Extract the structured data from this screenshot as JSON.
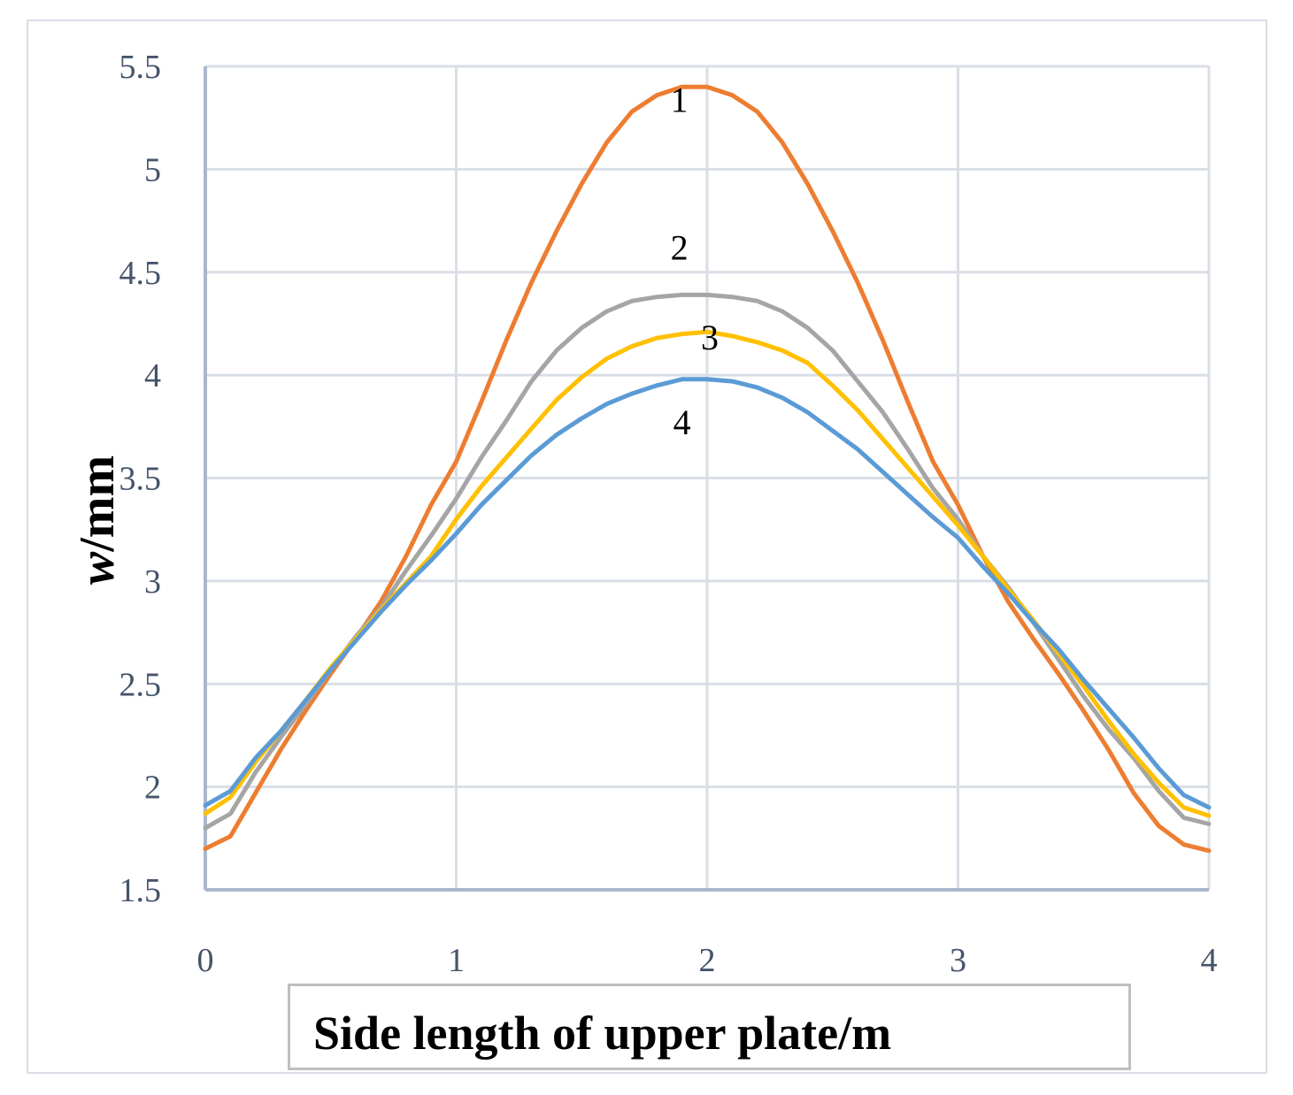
{
  "chart_data": {
    "type": "line",
    "xlabel": "Side length of upper plate/m",
    "ylabel_italic": "w",
    "ylabel_unit": "/mm",
    "xlim": [
      0,
      4
    ],
    "ylim": [
      1.5,
      5.5
    ],
    "xticks": [
      0,
      1,
      2,
      3,
      4
    ],
    "yticks": [
      1.5,
      2,
      2.5,
      3,
      3.5,
      4,
      4.5,
      5,
      5.5
    ],
    "grid": true,
    "legend": "none",
    "series": [
      {
        "label": "1",
        "color": "#ed7d31",
        "x": [
          0,
          0.1,
          0.2,
          0.3,
          0.4,
          0.5,
          0.6,
          0.7,
          0.8,
          0.9,
          1.0,
          1.1,
          1.2,
          1.3,
          1.4,
          1.5,
          1.6,
          1.7,
          1.8,
          1.9,
          2.0,
          2.1,
          2.2,
          2.3,
          2.4,
          2.5,
          2.6,
          2.7,
          2.8,
          2.9,
          3.0,
          3.1,
          3.2,
          3.3,
          3.4,
          3.5,
          3.6,
          3.7,
          3.8,
          3.9,
          4.0
        ],
        "y": [
          1.7,
          1.76,
          1.97,
          2.18,
          2.37,
          2.55,
          2.72,
          2.9,
          3.12,
          3.37,
          3.58,
          3.87,
          4.17,
          4.45,
          4.7,
          4.93,
          5.13,
          5.28,
          5.36,
          5.4,
          5.4,
          5.36,
          5.28,
          5.13,
          4.93,
          4.7,
          4.45,
          4.17,
          3.87,
          3.58,
          3.37,
          3.12,
          2.9,
          2.72,
          2.55,
          2.37,
          2.18,
          1.97,
          1.81,
          1.72,
          1.69
        ]
      },
      {
        "label": "2",
        "color": "#a5a5a5",
        "x": [
          0,
          0.1,
          0.2,
          0.3,
          0.4,
          0.5,
          0.6,
          0.7,
          0.8,
          0.9,
          1.0,
          1.1,
          1.2,
          1.3,
          1.4,
          1.5,
          1.6,
          1.7,
          1.8,
          1.9,
          2.0,
          2.1,
          2.2,
          2.3,
          2.4,
          2.5,
          2.6,
          2.7,
          2.8,
          2.9,
          3.0,
          3.1,
          3.2,
          3.3,
          3.4,
          3.5,
          3.6,
          3.7,
          3.8,
          3.9,
          4.0
        ],
        "y": [
          1.8,
          1.87,
          2.07,
          2.24,
          2.4,
          2.57,
          2.73,
          2.87,
          3.05,
          3.22,
          3.4,
          3.6,
          3.78,
          3.97,
          4.12,
          4.23,
          4.31,
          4.36,
          4.38,
          4.39,
          4.39,
          4.38,
          4.36,
          4.31,
          4.23,
          4.12,
          3.97,
          3.82,
          3.64,
          3.45,
          3.3,
          3.12,
          2.97,
          2.8,
          2.62,
          2.44,
          2.28,
          2.14,
          1.98,
          1.85,
          1.82
        ]
      },
      {
        "label": "3",
        "color": "#ffc000",
        "x": [
          0,
          0.1,
          0.2,
          0.3,
          0.4,
          0.5,
          0.6,
          0.7,
          0.8,
          0.9,
          1.0,
          1.1,
          1.2,
          1.3,
          1.4,
          1.5,
          1.6,
          1.7,
          1.8,
          1.9,
          2.0,
          2.1,
          2.2,
          2.3,
          2.4,
          2.5,
          2.6,
          2.7,
          2.8,
          2.9,
          3.0,
          3.1,
          3.2,
          3.3,
          3.4,
          3.5,
          3.6,
          3.7,
          3.8,
          3.9,
          4.0
        ],
        "y": [
          1.87,
          1.95,
          2.12,
          2.27,
          2.42,
          2.58,
          2.72,
          2.86,
          2.99,
          3.12,
          3.3,
          3.46,
          3.6,
          3.74,
          3.88,
          3.99,
          4.08,
          4.14,
          4.18,
          4.2,
          4.21,
          4.19,
          4.16,
          4.12,
          4.06,
          3.95,
          3.83,
          3.69,
          3.55,
          3.41,
          3.27,
          3.12,
          2.96,
          2.81,
          2.65,
          2.49,
          2.32,
          2.16,
          2.02,
          1.9,
          1.86
        ]
      },
      {
        "label": "4",
        "color": "#5b9bd5",
        "x": [
          0,
          0.1,
          0.2,
          0.3,
          0.4,
          0.5,
          0.6,
          0.7,
          0.8,
          0.9,
          1.0,
          1.1,
          1.2,
          1.3,
          1.4,
          1.5,
          1.6,
          1.7,
          1.8,
          1.9,
          2.0,
          2.1,
          2.2,
          2.3,
          2.4,
          2.5,
          2.6,
          2.7,
          2.8,
          2.9,
          3.0,
          3.1,
          3.2,
          3.3,
          3.4,
          3.5,
          3.6,
          3.7,
          3.8,
          3.9,
          4.0
        ],
        "y": [
          1.91,
          1.98,
          2.14,
          2.27,
          2.42,
          2.57,
          2.71,
          2.85,
          2.98,
          3.1,
          3.23,
          3.37,
          3.49,
          3.61,
          3.71,
          3.79,
          3.86,
          3.91,
          3.95,
          3.98,
          3.98,
          3.97,
          3.94,
          3.89,
          3.82,
          3.73,
          3.64,
          3.53,
          3.42,
          3.31,
          3.21,
          3.07,
          2.94,
          2.8,
          2.67,
          2.52,
          2.38,
          2.24,
          2.09,
          1.96,
          1.9
        ]
      }
    ]
  }
}
